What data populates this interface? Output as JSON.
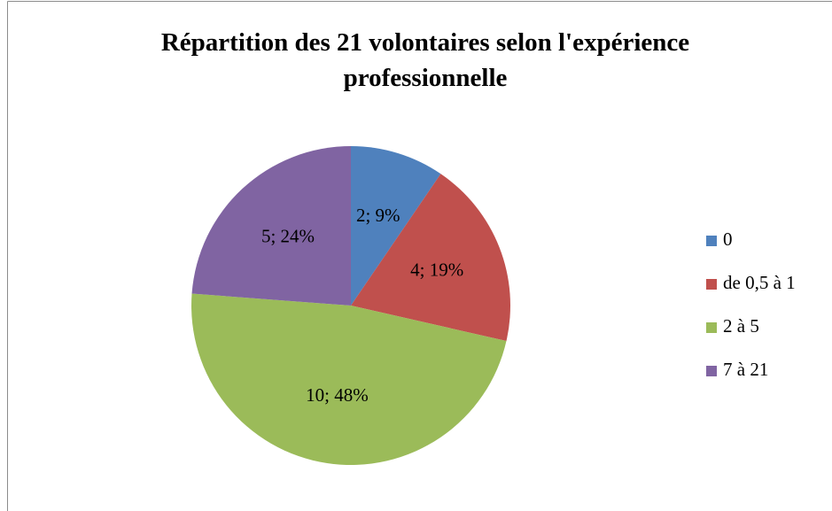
{
  "chart_data": {
    "type": "pie",
    "title": "Répartition des 21 volontaires selon l'expérience professionnelle",
    "categories": [
      "0",
      "de 0,5 à 1",
      "2 à 5",
      "7 à 21"
    ],
    "values": [
      2,
      4,
      10,
      5
    ],
    "value_labels": [
      "2; 9%",
      "4; 19%",
      "10; 48%",
      "5; 24%"
    ],
    "colors": [
      "#4f81bd",
      "#c0504d",
      "#9bbb59",
      "#8064a2"
    ],
    "legend": "right"
  }
}
